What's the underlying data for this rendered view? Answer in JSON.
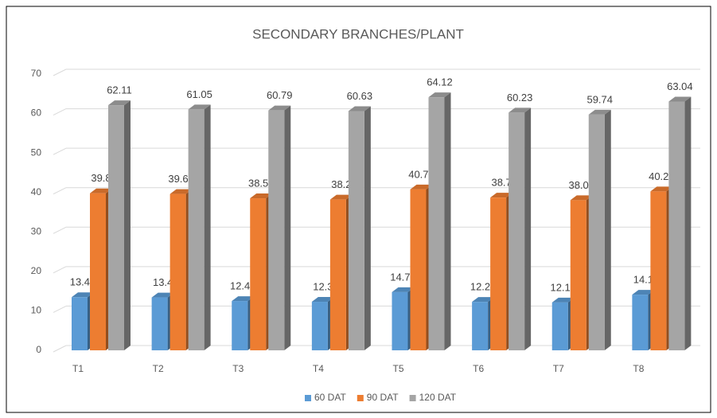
{
  "chart_data": {
    "type": "bar3d",
    "title": "SECONDARY BRANCHES/PLANT",
    "categories": [
      "T1",
      "T2",
      "T3",
      "T4",
      "T5",
      "T6",
      "T7",
      "T8"
    ],
    "series": [
      {
        "name": "60 DAT",
        "color": "#5b9bd5",
        "values": [
          13.46,
          13.4,
          12.49,
          12.3,
          14.76,
          12.28,
          12.13,
          14.1
        ]
      },
      {
        "name": "90 DAT",
        "color": "#ed7d31",
        "values": [
          39.8,
          39.62,
          38.52,
          38.2,
          40.78,
          38.7,
          38.05,
          40.26
        ]
      },
      {
        "name": "120 DAT",
        "color": "#a5a5a5",
        "values": [
          62.11,
          61.05,
          60.79,
          60.63,
          64.12,
          60.23,
          59.74,
          63.04
        ]
      }
    ],
    "ylim": [
      0,
      70
    ],
    "yticks": [
      0,
      10,
      20,
      30,
      40,
      50,
      60,
      70
    ],
    "grid": true,
    "legend": "bottom"
  }
}
